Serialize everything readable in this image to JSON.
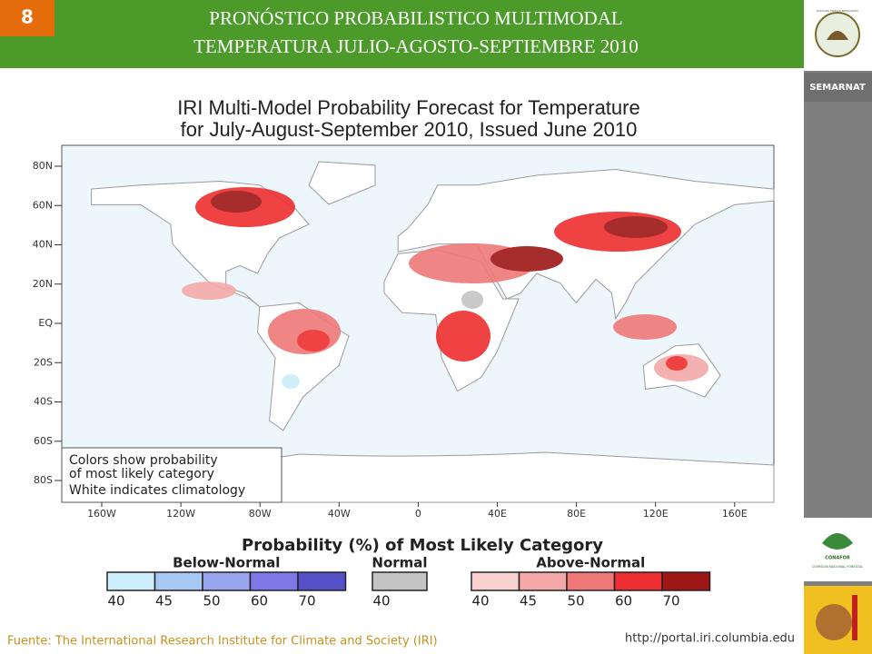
{
  "slide_number": "8",
  "header": {
    "title_lines": [
      "PRONÓSTICO PROBABILISTICO MULTIMODAL",
      "TEMPERATURA  JULIO-AGOSTO-SEPTIEMBRE 2010"
    ]
  },
  "sidebar": {
    "emblem": "ESTADOS UNIDOS MEXICANOS",
    "agency": "SEMARNAT",
    "conafor": "CONAFOR",
    "conafor_name": "COMISIÓN NACIONAL FORESTAL"
  },
  "map": {
    "title_lines": [
      "IRI Multi-Model Probability Forecast for Temperature",
      "for July-August-September 2010, Issued June 2010"
    ],
    "lat_labels": [
      "80N",
      "60N",
      "40N",
      "20N",
      "EQ",
      "20S",
      "40S",
      "60S",
      "80S"
    ],
    "lon_labels": [
      "160W",
      "120W",
      "80W",
      "40W",
      "0",
      "40E",
      "80E",
      "120E",
      "160E"
    ],
    "note_lines": [
      "Colors show probability",
      "of most likely category",
      "White indicates climatology"
    ]
  },
  "legend": {
    "title": "Probability (%) of Most Likely Category",
    "groups": [
      {
        "name": "Below-Normal",
        "colors": [
          "#cdeefa",
          "#a9c9f5",
          "#9aa5f0",
          "#7e78e8",
          "#5450c8"
        ],
        "labels": [
          40,
          45,
          50,
          60,
          70
        ]
      },
      {
        "name": "Normal",
        "colors": [
          "#c4c4c4"
        ],
        "labels": [
          40
        ]
      },
      {
        "name": "Above-Normal",
        "colors": [
          "#f8d0d0",
          "#f4a8a8",
          "#ef7878",
          "#ee2e2e",
          "#9e1616"
        ],
        "labels": [
          40,
          45,
          50,
          60,
          70
        ]
      }
    ]
  },
  "footer": {
    "source": "Fuente: The International Research Institute for Climate and Society (IRI)",
    "url": "http://portal.iri.columbia.edu"
  }
}
